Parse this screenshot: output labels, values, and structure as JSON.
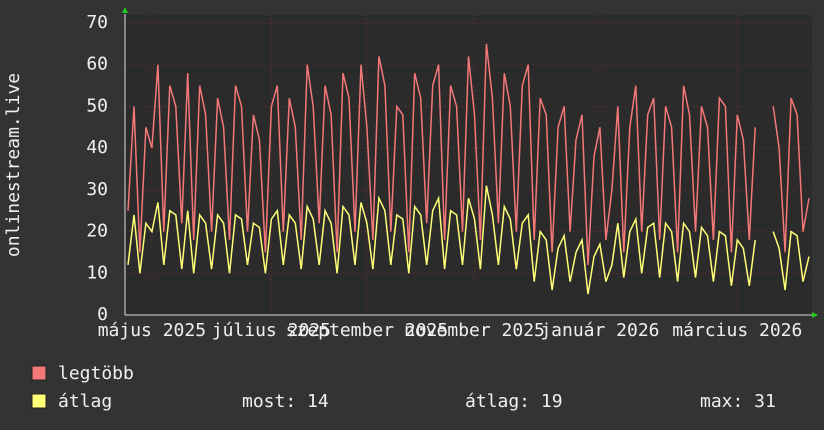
{
  "chart_data": {
    "type": "line",
    "y_label": "onlinestream.live",
    "categories": [
      null,
      null,
      null,
      null,
      "május 2025",
      null,
      null,
      null,
      null,
      null,
      null,
      null,
      null,
      null,
      null,
      null,
      null,
      null,
      null,
      null,
      null,
      null,
      null,
      null,
      "július 2025",
      null,
      null,
      null,
      null,
      null,
      null,
      null,
      null,
      null,
      null,
      null,
      null,
      null,
      null,
      null,
      "szeptember 2025",
      null,
      null,
      null,
      null,
      null,
      null,
      null,
      null,
      null,
      null,
      null,
      null,
      null,
      null,
      null,
      null,
      null,
      "november 2025",
      null,
      null,
      null,
      null,
      null,
      null,
      null,
      null,
      null,
      null,
      null,
      null,
      null,
      null,
      null,
      null,
      null,
      null,
      null,
      null,
      "január 2026",
      null,
      null,
      null,
      null,
      null,
      null,
      null,
      null,
      null,
      null,
      null,
      null,
      null,
      null,
      null,
      null,
      null,
      null,
      null,
      null,
      null,
      null,
      "március 2026",
      null,
      null,
      null,
      null,
      null,
      null,
      null,
      null,
      null,
      null,
      null,
      null
    ],
    "series": [
      {
        "name": "legtöbb",
        "color": "#f47878",
        "values": [
          25,
          50,
          15,
          45,
          40,
          60,
          20,
          55,
          50,
          22,
          58,
          18,
          55,
          48,
          20,
          52,
          45,
          18,
          55,
          50,
          20,
          48,
          42,
          15,
          50,
          55,
          20,
          52,
          45,
          18,
          60,
          50,
          22,
          55,
          48,
          15,
          58,
          52,
          20,
          60,
          45,
          18,
          62,
          55,
          20,
          50,
          48,
          15,
          58,
          52,
          22,
          55,
          60,
          18,
          55,
          50,
          20,
          62,
          48,
          18,
          65,
          52,
          22,
          58,
          50,
          20,
          55,
          60,
          18,
          52,
          48,
          15,
          45,
          50,
          20,
          42,
          48,
          12,
          38,
          45,
          18,
          30,
          50,
          15,
          45,
          55,
          20,
          48,
          52,
          18,
          50,
          45,
          15,
          55,
          48,
          20,
          50,
          45,
          18,
          52,
          50,
          15,
          48,
          42,
          18,
          45,
          null,
          null,
          50,
          40,
          15,
          52,
          48,
          20,
          28
        ]
      },
      {
        "name": "átlag",
        "color": "#ffff78",
        "values": [
          12,
          24,
          10,
          22,
          20,
          27,
          12,
          25,
          24,
          11,
          25,
          10,
          24,
          22,
          11,
          24,
          22,
          10,
          24,
          23,
          12,
          22,
          21,
          10,
          23,
          25,
          12,
          24,
          22,
          11,
          26,
          23,
          12,
          25,
          22,
          10,
          26,
          24,
          12,
          27,
          22,
          11,
          28,
          25,
          12,
          24,
          23,
          10,
          26,
          24,
          12,
          25,
          28,
          11,
          25,
          24,
          12,
          28,
          23,
          11,
          31,
          24,
          12,
          26,
          23,
          11,
          22,
          24,
          8,
          20,
          18,
          6,
          16,
          19,
          8,
          15,
          18,
          5,
          14,
          17,
          8,
          12,
          22,
          9,
          20,
          23,
          10,
          21,
          22,
          9,
          22,
          20,
          8,
          22,
          20,
          9,
          21,
          19,
          8,
          20,
          19,
          7,
          18,
          16,
          7,
          18,
          null,
          null,
          20,
          16,
          6,
          20,
          19,
          8,
          14
        ]
      }
    ],
    "stats": [
      "most: 14",
      "átlag: 19",
      "max: 31"
    ],
    "ylim": [
      0,
      70
    ],
    "yticks": [
      0,
      10,
      20,
      30,
      40,
      50,
      60,
      70
    ],
    "grid": true
  }
}
